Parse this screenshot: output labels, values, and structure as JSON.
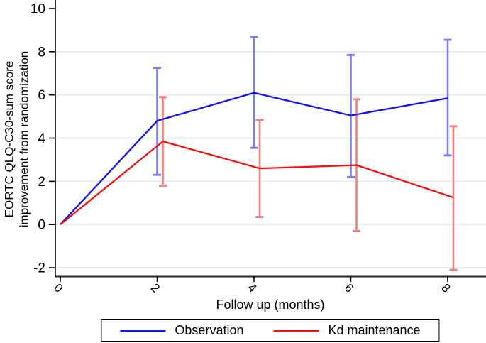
{
  "chart_data": {
    "type": "line",
    "title": "",
    "xlabel": "Follow up (months)",
    "ylabel_lines": [
      "EORTC QLQ-C30-sum score",
      "improvement from randomization"
    ],
    "x": [
      0,
      2,
      4,
      6,
      8
    ],
    "xticks": [
      "0",
      "2",
      "4",
      "6",
      "8"
    ],
    "yticks": [
      "-2",
      "0",
      "2",
      "4",
      "6",
      "8",
      "10"
    ],
    "ytick_values": [
      -2,
      0,
      2,
      4,
      6,
      8,
      10
    ],
    "gridline_values": [
      -2,
      0,
      2,
      4,
      6,
      8
    ],
    "xlim": [
      0,
      8.8
    ],
    "ylim": [
      -2.4,
      10.5
    ],
    "grid_on": true,
    "grid_color": "#e2eef0",
    "axis_color": "#000000",
    "legend_position": "bottom",
    "series": [
      {
        "name": "Observation",
        "color": "#1414ee",
        "errorbar_color": "#7b7cf2",
        "values": [
          0,
          4.8,
          6.1,
          5.05,
          5.85
        ],
        "ci_low": [
          null,
          2.3,
          3.55,
          2.2,
          3.2
        ],
        "ci_high": [
          null,
          7.25,
          8.7,
          7.85,
          8.55
        ]
      },
      {
        "name": "Kd maintenance",
        "color": "#f31212",
        "errorbar_color": "#f77d7d",
        "values": [
          0,
          3.85,
          2.6,
          2.75,
          1.25
        ],
        "ci_low": [
          null,
          1.8,
          0.35,
          -0.3,
          -2.1
        ],
        "ci_high": [
          null,
          5.9,
          4.85,
          5.8,
          4.55
        ]
      }
    ]
  }
}
